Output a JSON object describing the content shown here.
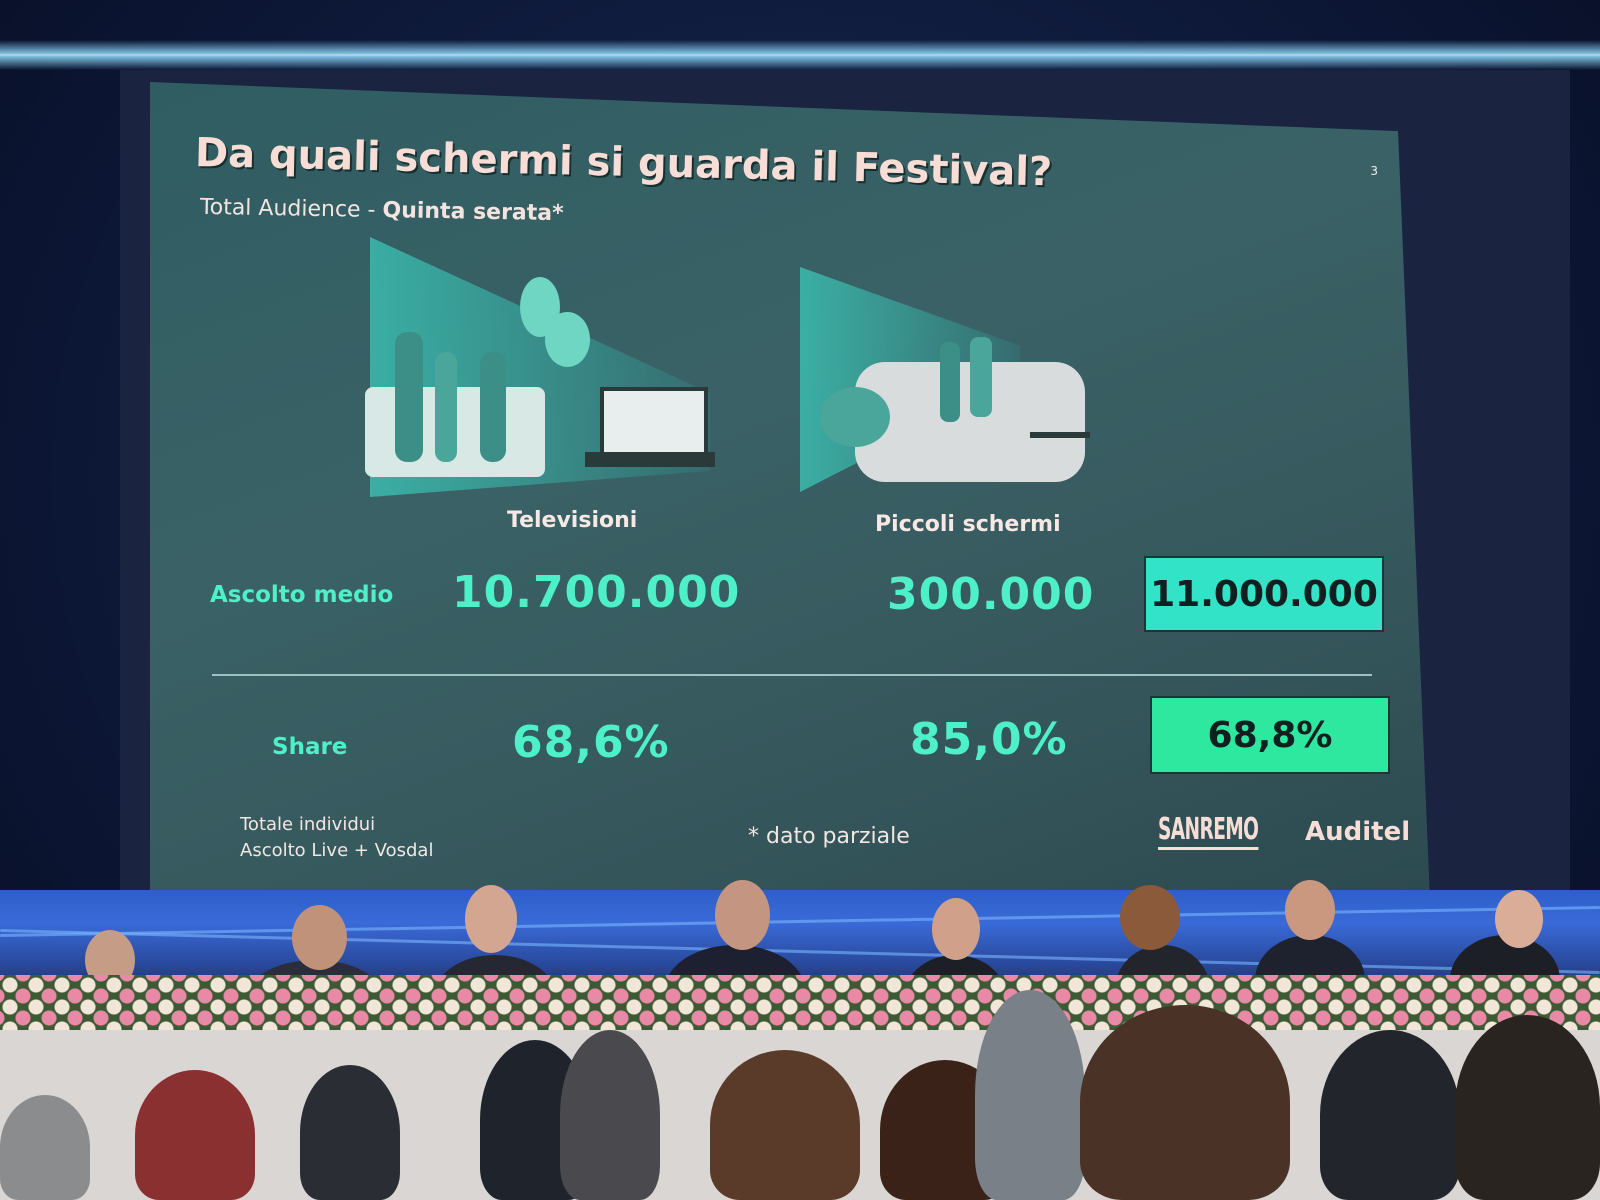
{
  "slide": {
    "title": "Da quali schermi si guarda il Festival?",
    "subtitle_prefix": "Total Audience -",
    "subtitle_bold": "Quinta serata*",
    "page_number": "3",
    "columns": [
      "Televisioni",
      "Piccoli schermi"
    ],
    "rows": [
      {
        "label": "Ascolto medio",
        "values": [
          "10.700.000",
          "300.000"
        ],
        "total": "11.000.000"
      },
      {
        "label": "Share",
        "values": [
          "68,6%",
          "85,0%"
        ],
        "total": "68,8%"
      }
    ],
    "footnote_lines": [
      "Totale individui",
      "Ascolto Live + Vosdal"
    ],
    "footnote_center": "* dato parziale",
    "logos": [
      "SANREMO",
      "Auditel"
    ],
    "colors": {
      "accent": "#4ef0c8",
      "total_box": "#32e3c8",
      "share_box": "#2ee8a0",
      "slide_bg": "#36585d"
    }
  }
}
